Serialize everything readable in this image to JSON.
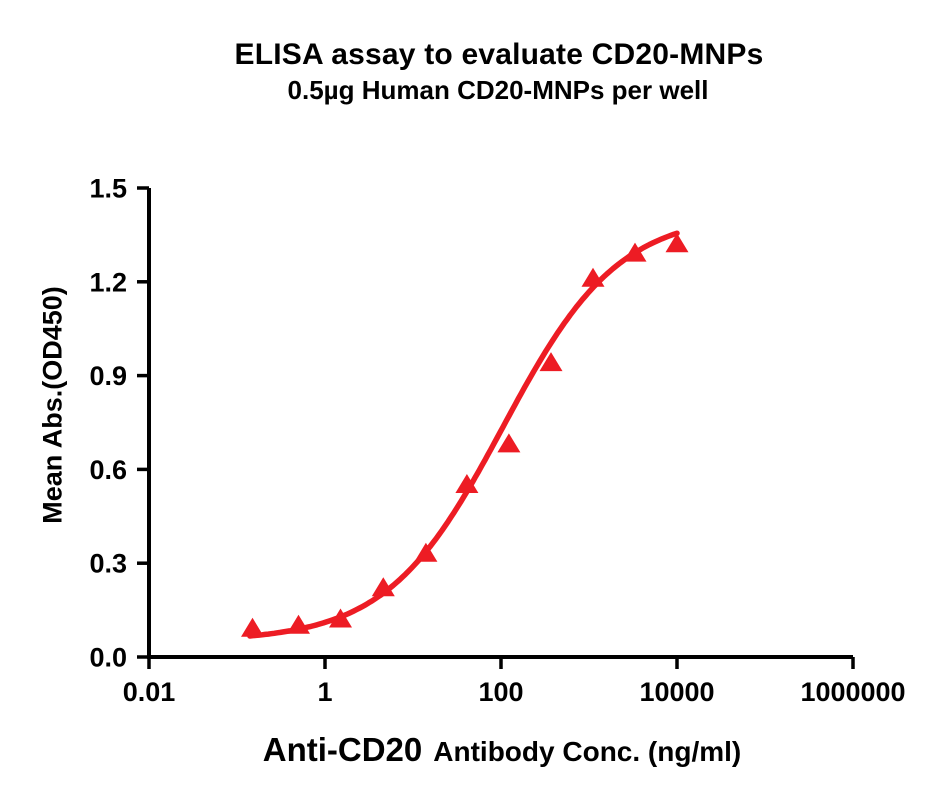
{
  "chart_data": {
    "type": "scatter",
    "title": "ELISA assay to evaluate CD20-MNPs",
    "subtitle": "0.5µg Human CD20-MNPs per well",
    "xlabel": "Anti-CD20 Antibody Conc. (ng/ml)",
    "xlabel_emphasis": "Anti-CD20",
    "xlabel_rest": "Antibody Conc. (ng/ml)",
    "ylabel": "Mean Abs.(OD450)",
    "x_scale": "log10",
    "xlim": [
      0.01,
      1000000
    ],
    "ylim": [
      0.0,
      1.5
    ],
    "x_ticks": [
      "0.01",
      "1",
      "100",
      "10000",
      "1000000"
    ],
    "y_ticks": [
      "0.0",
      "0.3",
      "0.6",
      "0.9",
      "1.2",
      "1.5"
    ],
    "grid": false,
    "legend": "none",
    "series": [
      {
        "marker": "filled-triangle-up",
        "color": "#ed1c24",
        "points": [
          [
            0.15,
            0.09
          ],
          [
            0.5,
            0.1
          ],
          [
            1.5,
            0.12
          ],
          [
            4.6,
            0.22
          ],
          [
            14,
            0.33
          ],
          [
            41,
            0.55
          ],
          [
            123,
            0.68
          ],
          [
            370,
            0.94
          ],
          [
            1111,
            1.21
          ],
          [
            3333,
            1.29
          ],
          [
            10000,
            1.32
          ]
        ],
        "fit_curve": {
          "model": "4PL",
          "bottom": 0.05,
          "top": 1.42,
          "ec50": 105,
          "hill": 0.66
        }
      }
    ],
    "colors": {
      "axis": "#000000",
      "text": "#000000",
      "series": "#ed1c24",
      "background": "#ffffff"
    }
  }
}
